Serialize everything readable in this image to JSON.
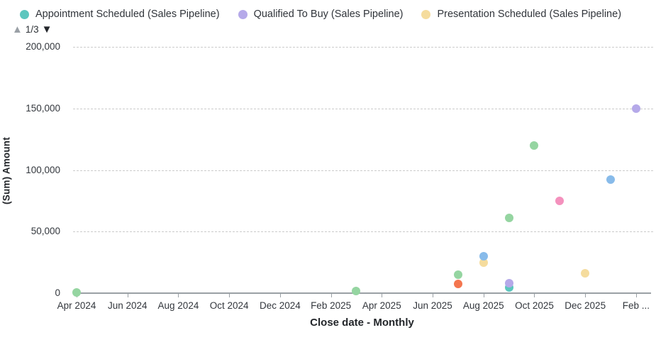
{
  "legend": {
    "items": [
      {
        "label": "Appointment Scheduled (Sales Pipeline)",
        "color": "#5cc6be"
      },
      {
        "label": "Qualified To Buy (Sales Pipeline)",
        "color": "#b5a9e9"
      },
      {
        "label": "Presentation Scheduled (Sales Pipeline)",
        "color": "#f5dc9d"
      }
    ],
    "pagination": {
      "page_label": "1/3",
      "up_icon": "▲",
      "down_icon": "▼"
    }
  },
  "chart_data": {
    "type": "scatter",
    "xlabel": "Close date - Monthly",
    "ylabel": "(Sum) Amount",
    "ylim": [
      0,
      200000
    ],
    "grid": "dashed-horizontal",
    "legend_position": "top-left",
    "yticks": [
      {
        "value": 0,
        "label": "0"
      },
      {
        "value": 50000,
        "label": "50,000"
      },
      {
        "value": 100000,
        "label": "100,000"
      },
      {
        "value": 150000,
        "label": "150,000"
      },
      {
        "value": 200000,
        "label": "200,000"
      }
    ],
    "x_ticks": [
      {
        "month_index": 0,
        "label": "Apr 2024"
      },
      {
        "month_index": 2,
        "label": "Jun 2024"
      },
      {
        "month_index": 4,
        "label": "Aug 2024"
      },
      {
        "month_index": 6,
        "label": "Oct 2024"
      },
      {
        "month_index": 8,
        "label": "Dec 2024"
      },
      {
        "month_index": 10,
        "label": "Feb 2025"
      },
      {
        "month_index": 12,
        "label": "Apr 2025"
      },
      {
        "month_index": 14,
        "label": "Jun 2025"
      },
      {
        "month_index": 16,
        "label": "Aug 2025"
      },
      {
        "month_index": 18,
        "label": "Oct 2025"
      },
      {
        "month_index": 20,
        "label": "Dec 2025"
      },
      {
        "month_index": 22,
        "label": "Feb ..."
      }
    ],
    "points": [
      {
        "month": "Apr 2024",
        "month_index": 0,
        "value": 500,
        "color": "#95d5a1",
        "series": ""
      },
      {
        "month": "Mar 2025",
        "month_index": 11,
        "value": 2000,
        "color": "#95d5a1",
        "series": ""
      },
      {
        "month": "Jul 2025",
        "month_index": 15,
        "value": 7500,
        "color": "#f4764f",
        "series": ""
      },
      {
        "month": "Jul 2025",
        "month_index": 15,
        "value": 15000,
        "color": "#95d5a1",
        "series": ""
      },
      {
        "month": "Aug 2025",
        "month_index": 16,
        "value": 25000,
        "color": "#f5dc9d",
        "series": "Presentation Scheduled (Sales Pipeline)"
      },
      {
        "month": "Aug 2025",
        "month_index": 16,
        "value": 30000,
        "color": "#88bbea",
        "series": ""
      },
      {
        "month": "Sep 2025",
        "month_index": 17,
        "value": 61000,
        "color": "#95d5a1",
        "series": ""
      },
      {
        "month": "Sep 2025",
        "month_index": 17,
        "value": 4500,
        "color": "#5cc6be",
        "series": "Appointment Scheduled (Sales Pipeline)"
      },
      {
        "month": "Sep 2025",
        "month_index": 17,
        "value": 8000,
        "color": "#b5a9e9",
        "series": "Qualified To Buy (Sales Pipeline)"
      },
      {
        "month": "Oct 2025",
        "month_index": 18,
        "value": 120000,
        "color": "#95d5a1",
        "series": ""
      },
      {
        "month": "Nov 2025",
        "month_index": 19,
        "value": 75000,
        "color": "#f491bd",
        "series": ""
      },
      {
        "month": "Dec 2025",
        "month_index": 20,
        "value": 16000,
        "color": "#f5dc9d",
        "series": "Presentation Scheduled (Sales Pipeline)"
      },
      {
        "month": "Jan 2026",
        "month_index": 21,
        "value": 92000,
        "color": "#88bbea",
        "series": ""
      },
      {
        "month": "Feb 2026",
        "month_index": 22,
        "value": 150000,
        "color": "#b5a9e9",
        "series": "Qualified To Buy (Sales Pipeline)"
      }
    ]
  }
}
